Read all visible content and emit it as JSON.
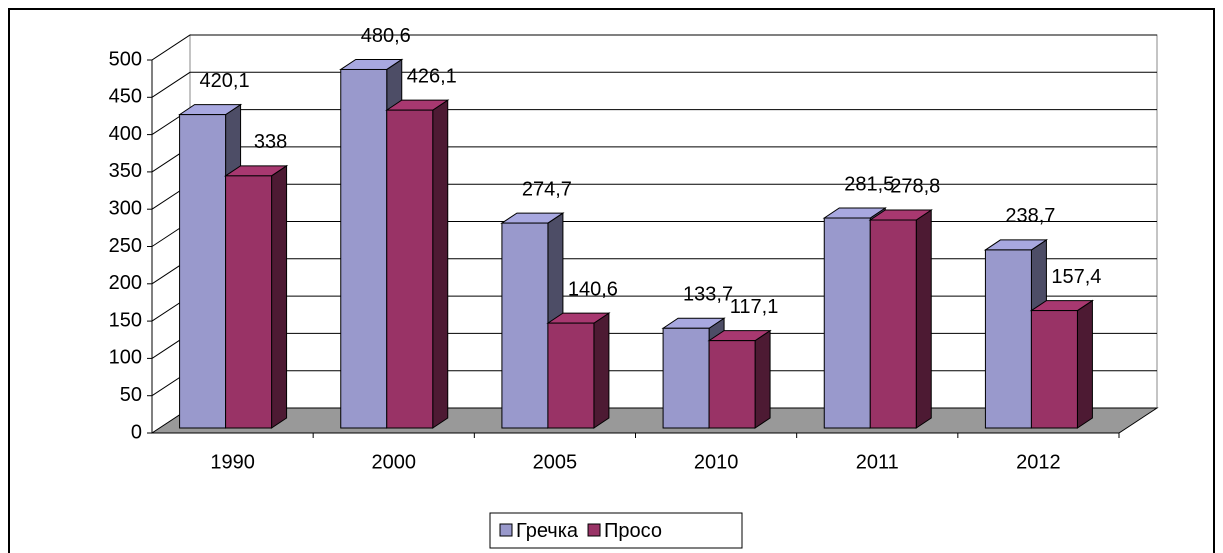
{
  "chart_data": {
    "type": "bar3d",
    "categories": [
      "1990",
      "2000",
      "2005",
      "2010",
      "2011",
      "2012"
    ],
    "series": [
      {
        "name": "Гречка",
        "color": "#9999cc",
        "values": [
          420.1,
          480.6,
          274.7,
          133.7,
          281.5,
          238.7
        ],
        "value_labels": [
          "420,1",
          "480,6",
          "274,7",
          "133,7",
          "281,5",
          "238,7"
        ]
      },
      {
        "name": "Просо",
        "color": "#993366",
        "values": [
          338,
          426.1,
          140.6,
          117.1,
          278.8,
          157.4
        ],
        "value_labels": [
          "338",
          "426,1",
          "140,6",
          "117,1",
          "278,8",
          "157,4"
        ]
      }
    ],
    "ylim": [
      0,
      500
    ],
    "yticks": [
      0,
      50,
      100,
      150,
      200,
      250,
      300,
      350,
      400,
      450,
      500
    ],
    "grid": true,
    "legend": "bottom"
  }
}
